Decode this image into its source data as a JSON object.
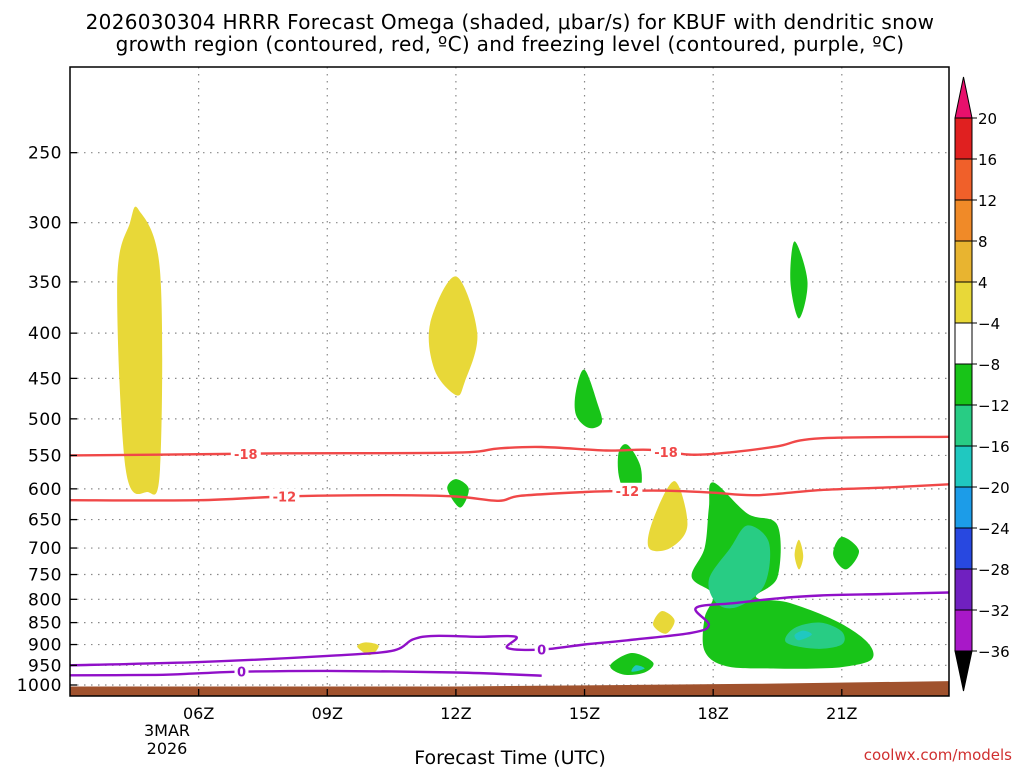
{
  "chart_data": {
    "type": "heatmap",
    "title_line1": "2026030304 HRRR Forecast Omega (shaded, μbar/s) for KBUF with dendritic snow",
    "title_line2": "growth region (contoured, red, ºC) and freezing level (contoured, purple, ºC)",
    "xlabel": "Forecast Time (UTC)",
    "date_label": [
      "3MAR",
      "2026"
    ],
    "watermark": "coolwx.com/models",
    "x_range_hours": [
      3.0,
      23.5
    ],
    "y_axis": "pressure (hPa), log scale, inverted",
    "y_range": [
      1000,
      200
    ],
    "x_ticks": [
      {
        "h": 6,
        "label": "06Z"
      },
      {
        "h": 9,
        "label": "09Z"
      },
      {
        "h": 12,
        "label": "12Z"
      },
      {
        "h": 15,
        "label": "15Z"
      },
      {
        "h": 18,
        "label": "18Z"
      },
      {
        "h": 21,
        "label": "21Z"
      }
    ],
    "y_ticks": [
      250,
      300,
      350,
      400,
      450,
      500,
      550,
      600,
      650,
      700,
      750,
      800,
      850,
      900,
      950,
      1000
    ],
    "grid": true,
    "colorbar": {
      "levels": [
        "20",
        "16",
        "12",
        "8",
        "4",
        "−4",
        "−8",
        "−12",
        "−16",
        "−20",
        "−24",
        "−28",
        "−32",
        "−36"
      ],
      "bands": [
        "#e02020",
        "#f0602a",
        "#f08a28",
        "#e8b430",
        "#e8d838",
        "#ffffff",
        "#18c418",
        "#28cc84",
        "#20c8c0",
        "#1c9ce8",
        "#2848e0",
        "#7020c0",
        "#a818c8",
        "#a8a8a8"
      ],
      "top_cap": "#e8106c",
      "bottom_cap": "#000000"
    },
    "shaded_regions": [
      {
        "sign": "up",
        "color": "#e8d838",
        "pts": [
          [
            4.6,
            290
          ],
          [
            5.1,
            340
          ],
          [
            5.1,
            570
          ],
          [
            4.8,
            605
          ],
          [
            4.3,
            570
          ],
          [
            4.1,
            350
          ],
          [
            4.4,
            300
          ]
        ]
      },
      {
        "sign": "up",
        "color": "#e8d838",
        "pts": [
          [
            12.0,
            345
          ],
          [
            12.5,
            400
          ],
          [
            12.2,
            455
          ],
          [
            12.0,
            470
          ],
          [
            11.5,
            440
          ],
          [
            11.4,
            390
          ]
        ]
      },
      {
        "sign": "up",
        "color": "#e8d838",
        "pts": [
          [
            17.1,
            588
          ],
          [
            17.4,
            660
          ],
          [
            17.0,
            700
          ],
          [
            16.5,
            700
          ],
          [
            16.6,
            650
          ]
        ]
      },
      {
        "sign": "up",
        "color": "#e8d838",
        "pts": [
          [
            16.8,
            825
          ],
          [
            17.1,
            845
          ],
          [
            16.9,
            875
          ],
          [
            16.6,
            855
          ]
        ]
      },
      {
        "sign": "up",
        "color": "#e8d838",
        "pts": [
          [
            9.9,
            895
          ],
          [
            10.2,
            903
          ],
          [
            10.0,
            925
          ],
          [
            9.7,
            905
          ]
        ]
      },
      {
        "sign": "up",
        "color": "#e8d838",
        "pts": [
          [
            20.0,
            685
          ],
          [
            20.1,
            715
          ],
          [
            20.0,
            740
          ],
          [
            19.9,
            712
          ]
        ]
      },
      {
        "sign": "down",
        "color": "#18c418",
        "pts": [
          [
            19.9,
            315
          ],
          [
            20.2,
            350
          ],
          [
            20.0,
            385
          ],
          [
            19.8,
            350
          ]
        ]
      },
      {
        "sign": "down",
        "color": "#18c418",
        "pts": [
          [
            15.0,
            440
          ],
          [
            15.3,
            480
          ],
          [
            15.4,
            505
          ],
          [
            15.1,
            512
          ],
          [
            14.8,
            495
          ],
          [
            14.8,
            465
          ]
        ]
      },
      {
        "sign": "down",
        "color": "#18c418",
        "pts": [
          [
            16.0,
            535
          ],
          [
            16.3,
            565
          ],
          [
            16.3,
            600
          ],
          [
            16.0,
            612
          ],
          [
            15.8,
            580
          ],
          [
            15.8,
            545
          ]
        ]
      },
      {
        "sign": "down",
        "color": "#18c418",
        "pts": [
          [
            12.0,
            585
          ],
          [
            12.3,
            600
          ],
          [
            12.1,
            630
          ],
          [
            11.8,
            600
          ]
        ]
      },
      {
        "sign": "down",
        "color": "#18c418",
        "pts": [
          [
            21.0,
            680
          ],
          [
            21.4,
            705
          ],
          [
            21.1,
            740
          ],
          [
            20.8,
            712
          ]
        ]
      },
      {
        "sign": "down",
        "color": "#18c418",
        "pts": [
          [
            16.1,
            920
          ],
          [
            16.6,
            943
          ],
          [
            16.4,
            968
          ],
          [
            15.9,
            973
          ],
          [
            15.6,
            950
          ]
        ]
      },
      {
        "sign": "down",
        "color": "#18c418",
        "pts": [
          [
            18.0,
            590
          ],
          [
            18.8,
            640
          ],
          [
            19.5,
            660
          ],
          [
            19.5,
            755
          ],
          [
            19.0,
            795
          ],
          [
            19.8,
            808
          ],
          [
            20.9,
            848
          ],
          [
            21.6,
            895
          ],
          [
            21.7,
            935
          ],
          [
            21.1,
            953
          ],
          [
            20.4,
            958
          ],
          [
            19.4,
            958
          ],
          [
            18.3,
            952
          ],
          [
            17.8,
            915
          ],
          [
            17.8,
            840
          ],
          [
            18.0,
            790
          ],
          [
            17.5,
            755
          ],
          [
            17.8,
            700
          ],
          [
            17.9,
            630
          ]
        ]
      },
      {
        "sign": "down",
        "color": "#28cc84",
        "pts": [
          [
            18.8,
            660
          ],
          [
            19.3,
            690
          ],
          [
            19.2,
            770
          ],
          [
            18.6,
            815
          ],
          [
            18.1,
            810
          ],
          [
            17.9,
            760
          ],
          [
            18.4,
            700
          ]
        ]
      },
      {
        "sign": "down",
        "color": "#28cc84",
        "pts": [
          [
            20.5,
            850
          ],
          [
            21.0,
            870
          ],
          [
            21.0,
            900
          ],
          [
            20.4,
            910
          ],
          [
            19.7,
            895
          ],
          [
            19.9,
            862
          ]
        ]
      },
      {
        "sign": "down",
        "color": "#20c8c0",
        "pts": [
          [
            20.1,
            868
          ],
          [
            20.3,
            877
          ],
          [
            20.0,
            890
          ],
          [
            19.9,
            878
          ]
        ]
      },
      {
        "sign": "down",
        "color": "#20c8c0",
        "pts": [
          [
            16.2,
            950
          ],
          [
            16.4,
            958
          ],
          [
            16.1,
            966
          ]
        ]
      }
    ],
    "contours": [
      {
        "value": -18,
        "label": "-18",
        "color": "#f04848",
        "role": "dendritic growth",
        "pts": [
          [
            3.0,
            550
          ],
          [
            5.0,
            549
          ],
          [
            8.0,
            547
          ],
          [
            12.0,
            546
          ],
          [
            13.0,
            540
          ],
          [
            14.0,
            538
          ],
          [
            15.5,
            543
          ],
          [
            16.5,
            542
          ],
          [
            17.5,
            549
          ],
          [
            18.5,
            545
          ],
          [
            19.5,
            537
          ],
          [
            20.5,
            526
          ],
          [
            23.5,
            524
          ]
        ],
        "labels_at_h": [
          7.1,
          16.9
        ]
      },
      {
        "value": -12,
        "label": "-12",
        "color": "#f04848",
        "role": "dendritic growth",
        "pts": [
          [
            3.0,
            618
          ],
          [
            6.0,
            618
          ],
          [
            8.0,
            612
          ],
          [
            10.5,
            610
          ],
          [
            12.0,
            612
          ],
          [
            13.0,
            619
          ],
          [
            13.5,
            611
          ],
          [
            15.0,
            605
          ],
          [
            16.0,
            603
          ],
          [
            17.0,
            603
          ],
          [
            18.0,
            606
          ],
          [
            19.0,
            610
          ],
          [
            20.5,
            602
          ],
          [
            22.0,
            598
          ],
          [
            23.5,
            593
          ]
        ],
        "labels_at_h": [
          8.0,
          16.0
        ]
      },
      {
        "value": 0,
        "label": "0",
        "color": "#9010c8",
        "role": "freezing level",
        "pts": [
          [
            3.0,
            950
          ],
          [
            6.0,
            942
          ],
          [
            9.0,
            927
          ],
          [
            10.5,
            915
          ],
          [
            11.0,
            888
          ],
          [
            11.5,
            880
          ],
          [
            12.5,
            882
          ],
          [
            13.4,
            882
          ],
          [
            13.2,
            908
          ],
          [
            14.0,
            912
          ],
          [
            15.0,
            900
          ],
          [
            16.0,
            890
          ],
          [
            17.5,
            873
          ],
          [
            17.9,
            855
          ],
          [
            17.6,
            818
          ],
          [
            18.5,
            808
          ],
          [
            19.5,
            798
          ],
          [
            20.5,
            792
          ],
          [
            22.0,
            789
          ],
          [
            23.5,
            786
          ]
        ],
        "labels_at_h": [
          14.0
        ]
      },
      {
        "value": 0,
        "label": "0",
        "color": "#9010c8",
        "role": "freezing level",
        "pts": [
          [
            3.0,
            975
          ],
          [
            5.0,
            974
          ],
          [
            6.0,
            970
          ],
          [
            7.0,
            966
          ],
          [
            9.0,
            964
          ],
          [
            12.0,
            968
          ],
          [
            14.0,
            976
          ]
        ],
        "labels_at_h": [
          7.0
        ]
      }
    ],
    "terrain": {
      "color": "#a0522d",
      "surface_hpa": [
        [
          3.0,
          1004
        ],
        [
          12.0,
          1004
        ],
        [
          16.0,
          1000
        ],
        [
          19.0,
          997
        ],
        [
          23.5,
          990
        ]
      ]
    }
  }
}
